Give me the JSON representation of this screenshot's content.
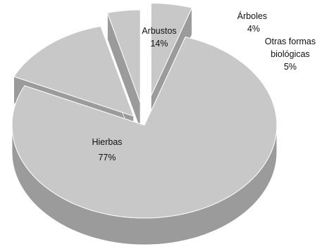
{
  "chart_data": {
    "type": "pie",
    "style": "3d-exploded",
    "title": "",
    "slices": [
      {
        "name": "Hierbas",
        "percent_label": "77%",
        "value": 77,
        "color": "#c8c8c8"
      },
      {
        "name": "Arbustos",
        "percent_label": "14%",
        "value": 14,
        "color": "#c8c8c8"
      },
      {
        "name": "Árboles",
        "percent_label": "4%",
        "value": 4,
        "color": "#c8c8c8"
      },
      {
        "name_lines": [
          "Otras formas",
          "biológicas"
        ],
        "percent_label": "5%",
        "value": 5,
        "color": "#c8c8c8"
      }
    ],
    "colors": {
      "top": "#c8c8c8",
      "side": "#9b9b9b",
      "edge": "#ffffff"
    }
  }
}
